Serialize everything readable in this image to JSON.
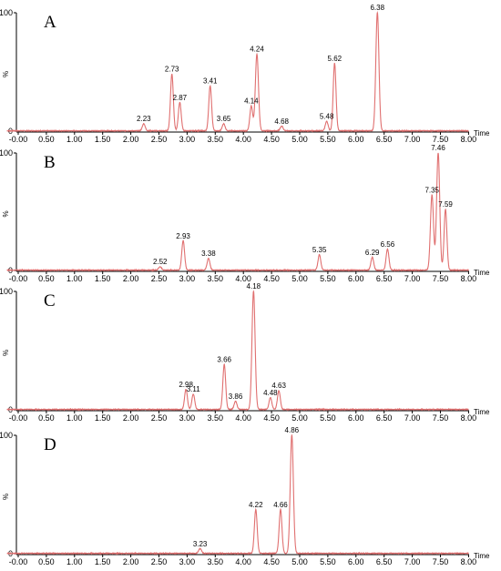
{
  "chart_data": [
    {
      "type": "line",
      "title": "A",
      "xlabel": "Time",
      "ylabel": "%",
      "xlim": [
        -0.2,
        8.1
      ],
      "ylim": [
        0,
        100
      ],
      "x_ticks": [
        "-0.00",
        "0.50",
        "1.00",
        "1.50",
        "2.00",
        "2.50",
        "3.00",
        "3.50",
        "4.00",
        "4.50",
        "5.00",
        "5.50",
        "6.00",
        "6.50",
        "7.00",
        "7.50",
        "8.00"
      ],
      "y_ticks": [
        "0",
        "100"
      ],
      "peaks": [
        {
          "x": 2.23,
          "y": 6,
          "label": "2.23"
        },
        {
          "x": 2.73,
          "y": 48,
          "label": "2.73"
        },
        {
          "x": 2.87,
          "y": 24,
          "label": "2.87"
        },
        {
          "x": 3.41,
          "y": 38,
          "label": "3.41"
        },
        {
          "x": 3.65,
          "y": 6,
          "label": "3.65"
        },
        {
          "x": 4.14,
          "y": 21,
          "label": "4.14"
        },
        {
          "x": 4.24,
          "y": 65,
          "label": "4.24"
        },
        {
          "x": 4.68,
          "y": 4,
          "label": "4.68"
        },
        {
          "x": 5.48,
          "y": 8,
          "label": "5.48"
        },
        {
          "x": 5.62,
          "y": 57,
          "label": "5.62"
        },
        {
          "x": 6.38,
          "y": 100,
          "label": "6.38"
        }
      ]
    },
    {
      "type": "line",
      "title": "B",
      "xlabel": "Time",
      "ylabel": "%",
      "xlim": [
        -0.2,
        8.1
      ],
      "ylim": [
        0,
        100
      ],
      "x_ticks": [
        "-0.00",
        "0.50",
        "1.00",
        "1.50",
        "2.00",
        "2.50",
        "3.00",
        "3.50",
        "4.00",
        "4.50",
        "5.00",
        "5.50",
        "6.00",
        "6.50",
        "7.00",
        "7.50",
        "8.00"
      ],
      "y_ticks": [
        "0",
        "100"
      ],
      "peaks": [
        {
          "x": 2.52,
          "y": 3,
          "label": "2.52"
        },
        {
          "x": 2.93,
          "y": 25,
          "label": "2.93"
        },
        {
          "x": 3.38,
          "y": 10,
          "label": "3.38"
        },
        {
          "x": 5.35,
          "y": 13,
          "label": "5.35"
        },
        {
          "x": 6.29,
          "y": 11,
          "label": "6.29"
        },
        {
          "x": 6.56,
          "y": 18,
          "label": "6.56"
        },
        {
          "x": 7.35,
          "y": 64,
          "label": "7.35"
        },
        {
          "x": 7.46,
          "y": 100,
          "label": "7.46"
        },
        {
          "x": 7.59,
          "y": 52,
          "label": "7.59"
        }
      ]
    },
    {
      "type": "line",
      "title": "C",
      "xlabel": "Time",
      "ylabel": "%",
      "xlim": [
        -0.2,
        8.1
      ],
      "ylim": [
        0,
        100
      ],
      "x_ticks": [
        "-0.00",
        "0.50",
        "1.00",
        "1.50",
        "2.00",
        "2.50",
        "3.00",
        "3.50",
        "4.00",
        "4.50",
        "5.00",
        "5.50",
        "6.00",
        "6.50",
        "7.00",
        "7.50",
        "8.00"
      ],
      "y_ticks": [
        "0",
        "100"
      ],
      "peaks": [
        {
          "x": 2.98,
          "y": 17,
          "label": "2.98"
        },
        {
          "x": 3.11,
          "y": 13,
          "label": "3.11"
        },
        {
          "x": 3.66,
          "y": 38,
          "label": "3.66"
        },
        {
          "x": 3.86,
          "y": 7,
          "label": "3.86"
        },
        {
          "x": 4.18,
          "y": 100,
          "label": "4.18"
        },
        {
          "x": 4.48,
          "y": 10,
          "label": "4.48"
        },
        {
          "x": 4.63,
          "y": 16,
          "label": "4.63"
        }
      ]
    },
    {
      "type": "line",
      "title": "D",
      "xlabel": "Time",
      "ylabel": "%",
      "xlim": [
        -0.2,
        8.1
      ],
      "ylim": [
        0,
        100
      ],
      "x_ticks": [
        "-0.00",
        "0.50",
        "1.00",
        "1.50",
        "2.00",
        "2.50",
        "3.00",
        "3.50",
        "4.00",
        "4.50",
        "5.00",
        "5.50",
        "6.00",
        "6.50",
        "7.00",
        "7.50",
        "8.00"
      ],
      "y_ticks": [
        "0",
        "100"
      ],
      "peaks": [
        {
          "x": 3.23,
          "y": 4,
          "label": "3.23"
        },
        {
          "x": 4.22,
          "y": 37,
          "label": "4.22"
        },
        {
          "x": 4.66,
          "y": 37,
          "label": "4.66"
        },
        {
          "x": 4.86,
          "y": 100,
          "label": "4.86"
        }
      ]
    }
  ],
  "colors": {
    "trace": "#e07070",
    "axis": "#000000",
    "background": "#ffffff"
  }
}
